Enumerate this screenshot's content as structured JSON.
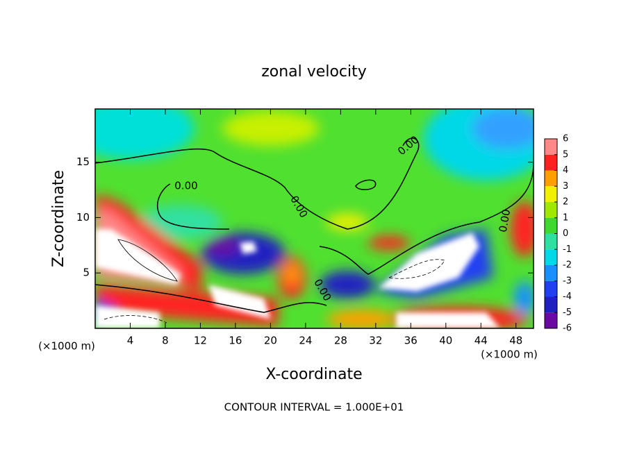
{
  "chart_data": {
    "type": "contour",
    "title": "zonal velocity",
    "x_label": "X-coordinate",
    "y_label": "Z-coordinate",
    "x_unit": "(×1000 m)",
    "y_unit": "(×1000 m)",
    "annotation": "CONTOUR INTERVAL = 1.000E+01",
    "xlim": [
      0,
      50
    ],
    "xticks": [
      4,
      8,
      12,
      16,
      20,
      24,
      28,
      32,
      36,
      40,
      44,
      48
    ],
    "ylim": [
      0,
      19.8
    ],
    "yticks": [
      5,
      10,
      15
    ],
    "contour_labels": [
      "0.00",
      "0.00",
      "0.00",
      "0.00",
      "0.00"
    ],
    "colorbar": {
      "ticks": [
        -6,
        -5,
        -4,
        -3,
        -2,
        -1,
        0,
        1,
        2,
        3,
        4,
        5,
        6
      ],
      "colors": [
        "#6a0aa0",
        "#2020c0",
        "#2040f0",
        "#1890ff",
        "#00d8e8",
        "#30e0a0",
        "#40d830",
        "#a0e800",
        "#f0f000",
        "#ffa000",
        "#ff2020",
        "#ff8888"
      ]
    }
  }
}
